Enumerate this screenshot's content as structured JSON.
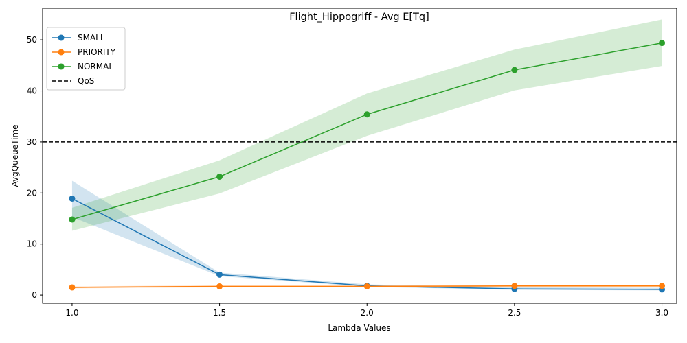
{
  "chart_data": {
    "type": "line",
    "title": "Flight_Hippogriff - Avg E[Tq]",
    "xlabel": "Lambda Values",
    "ylabel": "AvgQueueTime",
    "x": [
      1.0,
      1.5,
      2.0,
      2.5,
      3.0
    ],
    "xticks": [
      "1.0",
      "1.5",
      "2.0",
      "2.5",
      "3.0"
    ],
    "yticks": [
      "0",
      "10",
      "20",
      "30",
      "40",
      "50"
    ],
    "xlim": [
      0.9,
      3.05
    ],
    "ylim": [
      -1.6,
      56.2
    ],
    "grid": false,
    "legend_position": "top-left",
    "series": [
      {
        "name": "SMALL",
        "color": "#1f77b4",
        "values": [
          18.9,
          4.0,
          1.8,
          1.2,
          1.1
        ],
        "band_low": [
          15.3,
          3.7,
          1.6,
          1.0,
          0.9
        ],
        "band_high": [
          22.4,
          4.4,
          2.1,
          1.5,
          1.4
        ]
      },
      {
        "name": "PRIORITY",
        "color": "#ff7f0e",
        "values": [
          1.5,
          1.7,
          1.7,
          1.8,
          1.8
        ],
        "band_low": [
          1.3,
          1.5,
          1.5,
          1.6,
          1.6
        ],
        "band_high": [
          1.7,
          1.9,
          1.9,
          2.0,
          2.0
        ]
      },
      {
        "name": "NORMAL",
        "color": "#2ca02c",
        "values": [
          14.8,
          23.2,
          35.4,
          44.1,
          49.4
        ],
        "band_low": [
          12.6,
          19.9,
          31.2,
          40.1,
          44.9
        ],
        "band_high": [
          17.1,
          26.4,
          39.5,
          48.1,
          54.0
        ]
      }
    ],
    "reference_line": {
      "name": "QoS",
      "y": 30,
      "color": "#000000",
      "style": "dashed"
    }
  }
}
